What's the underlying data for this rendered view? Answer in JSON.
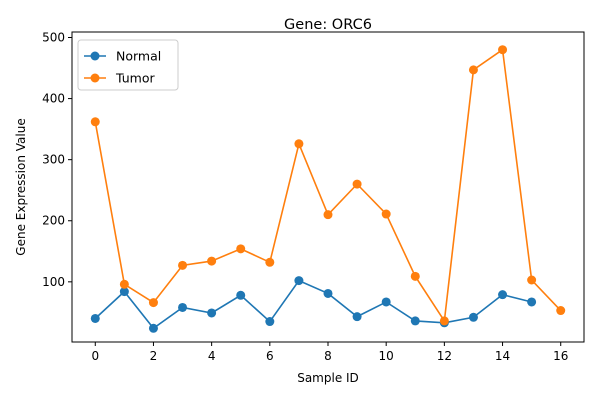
{
  "chart_data": {
    "type": "line",
    "title": "Gene: ORC6",
    "xlabel": "Sample ID",
    "ylabel": "Gene Expression Value",
    "xlim": [
      -0.8,
      16.8
    ],
    "ylim": [
      1.5,
      509
    ],
    "xticks": [
      0,
      2,
      4,
      6,
      8,
      10,
      12,
      14,
      16
    ],
    "yticks": [
      100,
      200,
      300,
      400,
      500
    ],
    "grid": false,
    "legend_position": "top-left",
    "series": [
      {
        "name": "Normal",
        "color": "#1f77b4",
        "x": [
          0,
          1,
          2,
          3,
          4,
          5,
          6,
          7,
          8,
          9,
          10,
          11,
          12,
          13,
          14,
          15
        ],
        "values": [
          40,
          84,
          24,
          58,
          49,
          78,
          35,
          102,
          81,
          43,
          67,
          36,
          33,
          42,
          79,
          67
        ]
      },
      {
        "name": "Tumor",
        "color": "#ff7f0e",
        "x": [
          0,
          1,
          2,
          3,
          4,
          5,
          6,
          7,
          8,
          9,
          10,
          11,
          12,
          13,
          14,
          15,
          16
        ],
        "values": [
          362,
          96,
          66,
          127,
          134,
          154,
          132,
          326,
          210,
          260,
          211,
          109,
          36,
          447,
          480,
          103,
          53
        ]
      }
    ]
  }
}
